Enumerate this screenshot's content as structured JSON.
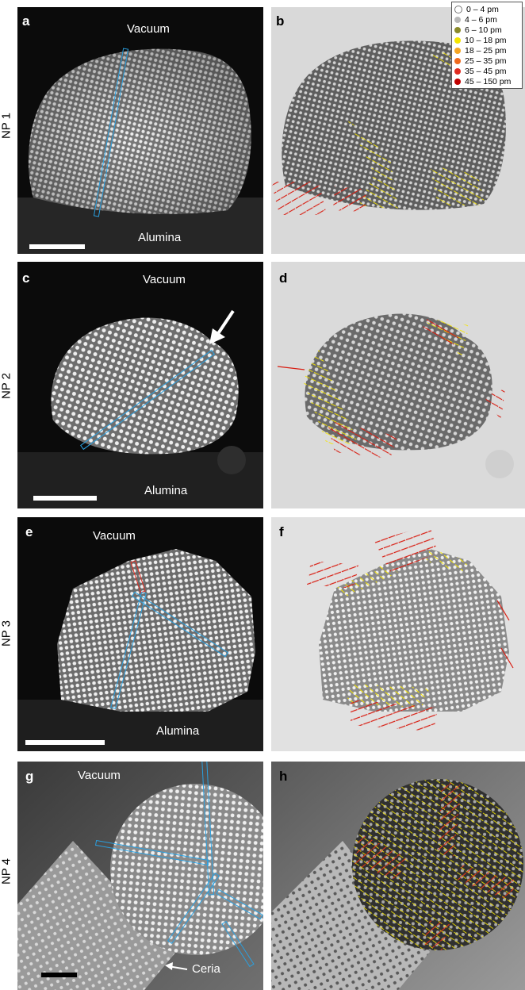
{
  "rows": [
    {
      "row_label": "NP 1",
      "left_label": "a",
      "right_label": "b",
      "top_text": "Vacuum",
      "bottom_text": "Alumina"
    },
    {
      "row_label": "NP 2",
      "left_label": "c",
      "right_label": "d",
      "top_text": "Vacuum",
      "bottom_text": "Alumina"
    },
    {
      "row_label": "NP 3",
      "left_label": "e",
      "right_label": "f",
      "top_text": "Vacuum",
      "bottom_text": "Alumina"
    },
    {
      "row_label": "NP 4",
      "left_label": "g",
      "right_label": "h",
      "top_text": "Vacuum",
      "bottom_text": "Ceria"
    }
  ],
  "legend": [
    {
      "label": "0 – 4 pm",
      "color": "#ffffff"
    },
    {
      "label": "4 – 6 pm",
      "color": "#b8b8b8"
    },
    {
      "label": "6 – 10 pm",
      "color": "#8a8a2a"
    },
    {
      "label": "10 – 18 pm",
      "color": "#f5e500"
    },
    {
      "label": "18 – 25 pm",
      "color": "#f5a623"
    },
    {
      "label": "25 – 35 pm",
      "color": "#f06a1e"
    },
    {
      "label": "35 – 45 pm",
      "color": "#e02b20"
    },
    {
      "label": "45 – 150 pm",
      "color": "#c00000"
    }
  ],
  "colors": {
    "profile_line": "#2aa0e0",
    "highlight_line": "#e02b20",
    "arrow": "#ffffff",
    "scale_bar_light": "#ffffff",
    "scale_bar_dark": "#000000"
  }
}
